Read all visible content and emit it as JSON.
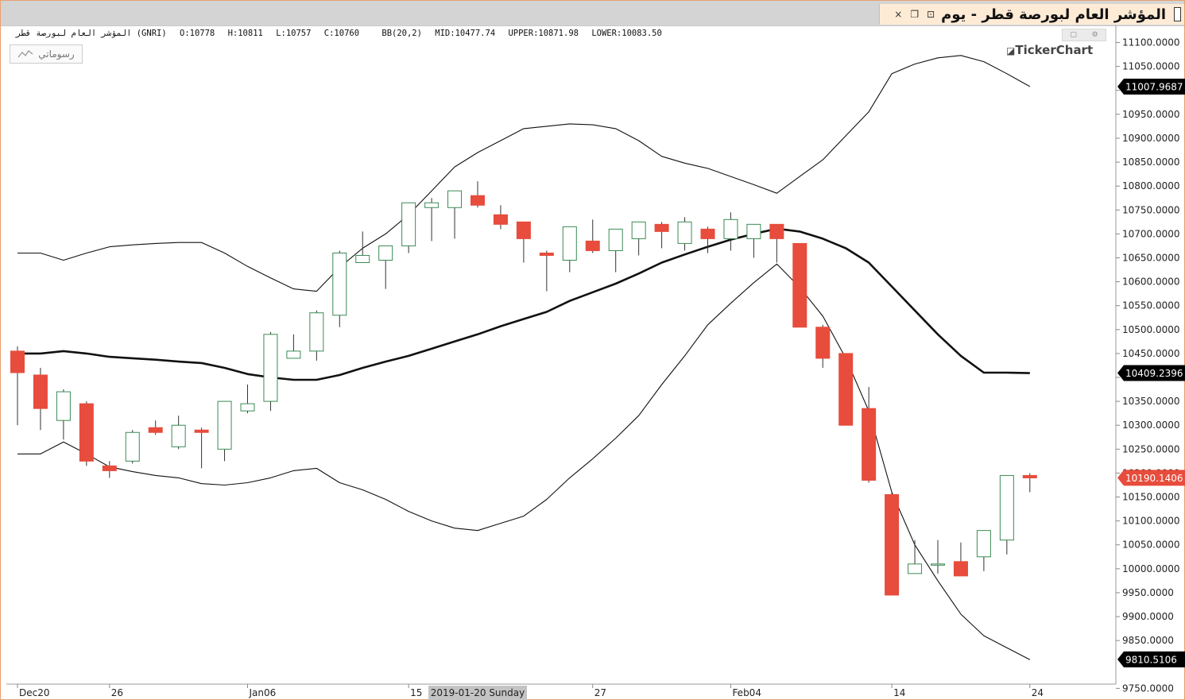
{
  "window": {
    "title": "المؤشر العام لبورصة قطر - يوم",
    "close_icon": "×",
    "restore_icon": "❐",
    "link_icon": "⊡"
  },
  "info": {
    "symbol": "المؤشر العام لبورصة قطر (GNRI)",
    "open": "O:10778",
    "high": "H:10811",
    "low": "L:10757",
    "close": "C:10760",
    "indicator": "BB(20,2)",
    "mid": "MID:10477.74",
    "upper": "UPPER:10871.98",
    "lower": "LOWER:10083.50"
  },
  "drawings_button": {
    "label": "رسوماتي",
    "icon": "line-drawing-icon"
  },
  "brand": "TickerChart",
  "chart_data": {
    "type": "candlestick",
    "y_range": [
      9730,
      11120
    ],
    "y_ticks": [
      11100,
      11050,
      11000,
      10950,
      10900,
      10850,
      10800,
      10750,
      10700,
      10650,
      10600,
      10550,
      10500,
      10450,
      10400,
      10350,
      10300,
      10250,
      10200,
      10150,
      10100,
      10050,
      10000,
      9950,
      9900,
      9850,
      9750
    ],
    "y_tick_labels": [
      "11100.0000",
      "11050.0000",
      "11000.0000",
      "10950.0000",
      "10900.0000",
      "10850.0000",
      "10800.0000",
      "10750.0000",
      "10700.0000",
      "10650.0000",
      "10600.0000",
      "10550.0000",
      "10500.0000",
      "10450.0000",
      "10400.0000",
      "10350.0000",
      "10300.0000",
      "10250.0000",
      "10200.0000",
      "10150.0000",
      "10100.0000",
      "10050.0000",
      "10000.0000",
      "9950.0000",
      "9900.0000",
      "9850.0000",
      "9750.0000"
    ],
    "x_labels": [
      {
        "index": 0,
        "label": "Dec20"
      },
      {
        "index": 4,
        "label": "26"
      },
      {
        "index": 10,
        "label": "Jan06"
      },
      {
        "index": 17,
        "label": "15"
      },
      {
        "index": 25,
        "label": "27"
      },
      {
        "index": 31,
        "label": "Feb04"
      },
      {
        "index": 38,
        "label": "14"
      },
      {
        "index": 44,
        "label": "24"
      }
    ],
    "crosshair_date": "2019-01-20 Sunday",
    "crosshair_index": 20,
    "price_labels": [
      {
        "value": 11007.9687,
        "label": "11007.9687",
        "color": "#000000"
      },
      {
        "value": 10409.2396,
        "label": "10409.2396",
        "color": "#000000"
      },
      {
        "value": 10190.1406,
        "label": "10190.1406",
        "color": "#e74c3c"
      },
      {
        "value": 9810.5106,
        "label": "9810.5106",
        "color": "#000000"
      }
    ],
    "candles": [
      {
        "o": 10455,
        "h": 10465,
        "l": 10300,
        "c": 10410
      },
      {
        "o": 10405,
        "h": 10420,
        "l": 10290,
        "c": 10335
      },
      {
        "o": 10310,
        "h": 10375,
        "l": 10270,
        "c": 10370
      },
      {
        "o": 10345,
        "h": 10350,
        "l": 10215,
        "c": 10225
      },
      {
        "o": 10215,
        "h": 10225,
        "l": 10190,
        "c": 10205
      },
      {
        "o": 10225,
        "h": 10290,
        "l": 10220,
        "c": 10285
      },
      {
        "o": 10295,
        "h": 10310,
        "l": 10280,
        "c": 10285
      },
      {
        "o": 10255,
        "h": 10320,
        "l": 10250,
        "c": 10300
      },
      {
        "o": 10290,
        "h": 10295,
        "l": 10210,
        "c": 10285
      },
      {
        "o": 10250,
        "h": 10350,
        "l": 10225,
        "c": 10350
      },
      {
        "o": 10330,
        "h": 10385,
        "l": 10325,
        "c": 10345
      },
      {
        "o": 10350,
        "h": 10495,
        "l": 10330,
        "c": 10490
      },
      {
        "o": 10440,
        "h": 10490,
        "l": 10440,
        "c": 10455
      },
      {
        "o": 10455,
        "h": 10540,
        "l": 10435,
        "c": 10535
      },
      {
        "o": 10530,
        "h": 10665,
        "l": 10505,
        "c": 10660
      },
      {
        "o": 10640,
        "h": 10705,
        "l": 10640,
        "c": 10655
      },
      {
        "o": 10645,
        "h": 10675,
        "l": 10585,
        "c": 10675
      },
      {
        "o": 10675,
        "h": 10765,
        "l": 10660,
        "c": 10765
      },
      {
        "o": 10755,
        "h": 10775,
        "l": 10685,
        "c": 10765
      },
      {
        "o": 10755,
        "h": 10790,
        "l": 10690,
        "c": 10790
      },
      {
        "o": 10780,
        "h": 10810,
        "l": 10755,
        "c": 10760
      },
      {
        "o": 10740,
        "h": 10760,
        "l": 10710,
        "c": 10720
      },
      {
        "o": 10725,
        "h": 10725,
        "l": 10640,
        "c": 10690
      },
      {
        "o": 10660,
        "h": 10665,
        "l": 10580,
        "c": 10655
      },
      {
        "o": 10645,
        "h": 10715,
        "l": 10620,
        "c": 10715
      },
      {
        "o": 10685,
        "h": 10730,
        "l": 10660,
        "c": 10665
      },
      {
        "o": 10665,
        "h": 10710,
        "l": 10620,
        "c": 10710
      },
      {
        "o": 10690,
        "h": 10725,
        "l": 10655,
        "c": 10725
      },
      {
        "o": 10720,
        "h": 10725,
        "l": 10670,
        "c": 10705
      },
      {
        "o": 10680,
        "h": 10735,
        "l": 10665,
        "c": 10725
      },
      {
        "o": 10710,
        "h": 10715,
        "l": 10660,
        "c": 10690
      },
      {
        "o": 10690,
        "h": 10745,
        "l": 10665,
        "c": 10730
      },
      {
        "o": 10690,
        "h": 10720,
        "l": 10650,
        "c": 10720
      },
      {
        "o": 10720,
        "h": 10720,
        "l": 10640,
        "c": 10690
      },
      {
        "o": 10680,
        "h": 10680,
        "l": 10505,
        "c": 10505
      },
      {
        "o": 10505,
        "h": 10510,
        "l": 10420,
        "c": 10440
      },
      {
        "o": 10450,
        "h": 10450,
        "l": 10300,
        "c": 10300
      },
      {
        "o": 10335,
        "h": 10380,
        "l": 10180,
        "c": 10185
      },
      {
        "o": 10155,
        "h": 10160,
        "l": 9945,
        "c": 9945
      },
      {
        "o": 9990,
        "h": 10060,
        "l": 9990,
        "c": 10010
      },
      {
        "o": 10010,
        "h": 10060,
        "l": 9990,
        "c": 10010
      },
      {
        "o": 10015,
        "h": 10055,
        "l": 9985,
        "c": 9985
      },
      {
        "o": 10025,
        "h": 10080,
        "l": 9995,
        "c": 10080
      },
      {
        "o": 10060,
        "h": 10195,
        "l": 10030,
        "c": 10195
      },
      {
        "o": 10195,
        "h": 10200,
        "l": 10160,
        "c": 10190
      }
    ],
    "bollinger": {
      "period": 20,
      "stddev": 2,
      "mid": [
        10450,
        10450,
        10455,
        10450,
        10443,
        10440,
        10437,
        10433,
        10430,
        10420,
        10407,
        10400,
        10395,
        10395,
        10405,
        10420,
        10433,
        10445,
        10460,
        10475,
        10490,
        10507,
        10522,
        10537,
        10560,
        10578,
        10596,
        10617,
        10640,
        10657,
        10673,
        10688,
        10700,
        10711,
        10705,
        10690,
        10670,
        10640,
        10590,
        10540,
        10490,
        10445,
        10410,
        10410,
        10409
      ],
      "upper": [
        10660,
        10660,
        10645,
        10660,
        10673,
        10677,
        10680,
        10682,
        10682,
        10660,
        10632,
        10608,
        10585,
        10580,
        10630,
        10670,
        10700,
        10740,
        10790,
        10840,
        10870,
        10895,
        10920,
        10925,
        10930,
        10928,
        10920,
        10895,
        10862,
        10848,
        10837,
        10820,
        10803,
        10785,
        10820,
        10855,
        10905,
        10955,
        11035,
        11055,
        11068,
        11073,
        11060,
        11035,
        11008
      ],
      "lower": [
        10240,
        10240,
        10265,
        10240,
        10213,
        10203,
        10195,
        10190,
        10178,
        10175,
        10180,
        10190,
        10205,
        10210,
        10180,
        10165,
        10145,
        10120,
        10100,
        10085,
        10080,
        10095,
        10110,
        10145,
        10190,
        10230,
        10273,
        10320,
        10385,
        10445,
        10510,
        10555,
        10598,
        10637,
        10588,
        10528,
        10440,
        10330,
        10160,
        10050,
        9975,
        9905,
        9860,
        9835,
        9810
      ]
    }
  }
}
